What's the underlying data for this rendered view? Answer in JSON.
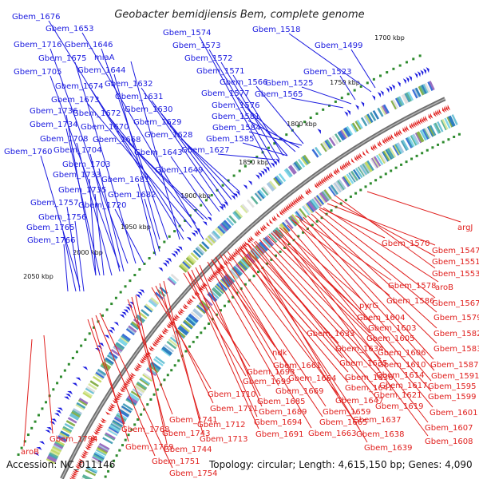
{
  "title": "Geobacter bemidjiensis Bem, complete genome",
  "accession": "Accession: NC_011146",
  "topology": "Topology: circular; Length: 4,615,150 bp; Genes: 4,090",
  "colors": {
    "forward": "#1a1adf",
    "reverse": "#e0201e",
    "backbone": "#808080",
    "tick": "#2e8b2e"
  },
  "kbp_ticks": [
    "1700 kbp",
    "1750 kbp",
    "1800 kbp",
    "1850 kbp",
    "1900 kbp",
    "1950 kbp",
    "2000 kbp",
    "2050 kbp"
  ],
  "labels_blue": [
    "Gbem_1676",
    "Gbem_1653",
    "Gbem_1646",
    "miaA",
    "Gbem_1716",
    "Gbem_1675",
    "Gbem_1644",
    "Gbem_1705",
    "Gbem_1674",
    "Gbem_1632",
    "Gbem_1631",
    "Gbem_1673",
    "Gbem_1630",
    "Gbem_1672",
    "Gbem_1629",
    "Gbem_1736",
    "Gbem_1670",
    "Gbem_1734",
    "Gbem_1668",
    "Gbem_1628",
    "Gbem_1708",
    "Gbem_1704",
    "Gbem_1643",
    "Gbem_1627",
    "Gbem_1760",
    "Gbem_1703",
    "Gbem_1649",
    "Gbem_1733",
    "Gbem_1681",
    "Gbem_1735",
    "Gbem_1682",
    "Gbem_1757",
    "Gbem_1720",
    "Gbem_1756",
    "Gbem_1765",
    "Gbem_1766",
    "Gbem_1574",
    "Gbem_1573",
    "Gbem_1572",
    "Gbem_1571",
    "Gbem_1566",
    "Gbem_1577",
    "Gbem_1576",
    "Gbem_1581",
    "Gbem_1584",
    "Gbem_1585",
    "Gbem_1518",
    "Gbem_1499",
    "Gbem_1523",
    "Gbem_1525",
    "Gbem_1565"
  ],
  "labels_red": [
    "argJ",
    "Gbem_1570",
    "Gbem_1547",
    "Gbem_1551",
    "Gbem_1553",
    "Gbem_1578",
    "aroB",
    "Gbem_1586",
    "Gbem_1567",
    "pyrG",
    "Gbem_1604",
    "Gbem_1579",
    "Gbem_1603",
    "Gbem_1582",
    "Gbem_1633",
    "Gbem_1605",
    "Gbem_1583",
    "ndk",
    "Gbem_1634",
    "Gbem_1606",
    "Gbem_1587",
    "Gbem_1661",
    "Gbem_1635",
    "Gbem_1610",
    "Gbem_1591",
    "Gbem_1693",
    "Gbem_1664",
    "Gbem_1636",
    "Gbem_1614",
    "Gbem_1595",
    "Gbem_1699",
    "Gbem_1669",
    "Gbem_1641",
    "Gbem_1617",
    "Gbem_1599",
    "Gbem_1685",
    "Gbem_1647",
    "Gbem_1621",
    "Gbem_1710",
    "Gbem_1689",
    "Gbem_1659",
    "Gbem_1619",
    "Gbem_1601",
    "Gbem_1711",
    "Gbem_1694",
    "Gbem_1665",
    "Gbem_1637",
    "Gbem_1741",
    "Gbem_1712",
    "Gbem_1691",
    "Gbem_1663",
    "Gbem_1638",
    "Gbem_1607",
    "Gbem_1713",
    "Gbem_1768",
    "Gbem_1743",
    "Gbem_1639",
    "Gbem_1608",
    "Gbem_1794",
    "Gbem_1769",
    "Gbem_1744",
    "Gbem_1751",
    "Gbem_1754",
    "aroB_2"
  ],
  "label_text_override": {
    "aroB_2": "aroB"
  }
}
